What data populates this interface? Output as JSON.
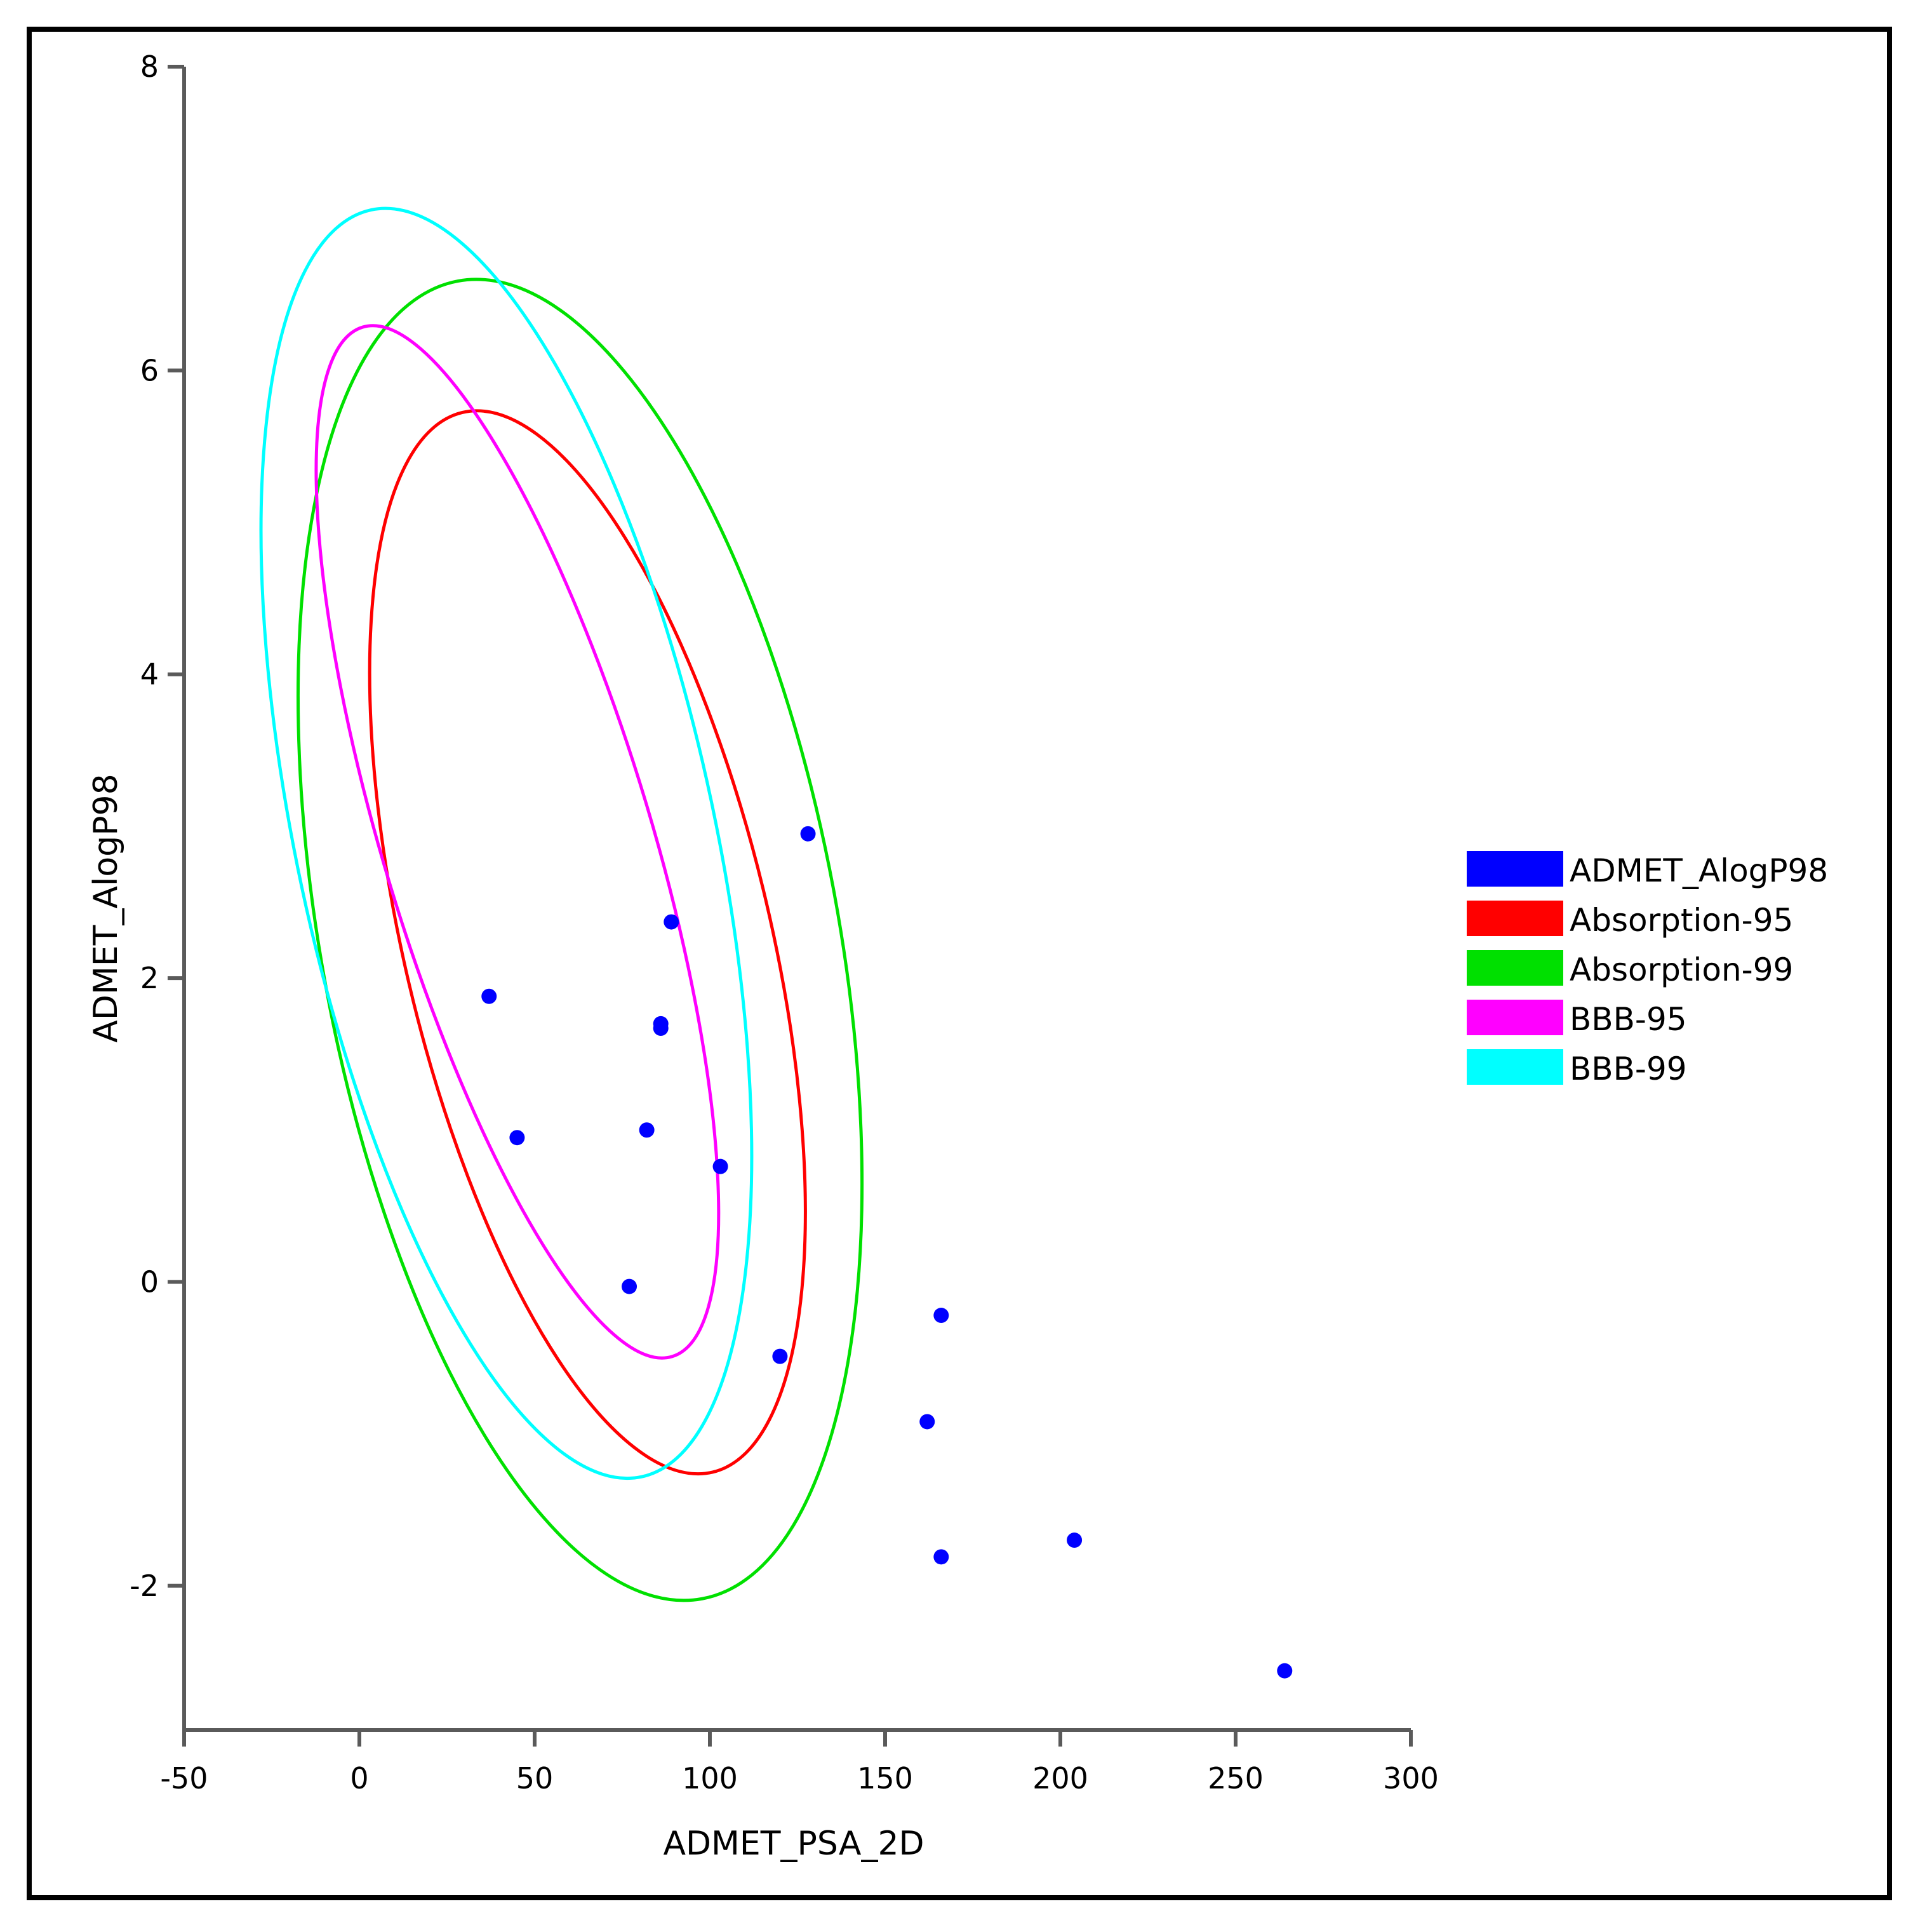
{
  "chart_data": {
    "type": "scatter",
    "xlabel": "ADMET_PSA_2D",
    "ylabel": "ADMET_AlogP98",
    "xlim": [
      -50,
      300
    ],
    "ylim": [
      -2.95,
      8
    ],
    "x_ticks": [
      -50,
      0,
      50,
      100,
      150,
      200,
      250,
      300
    ],
    "y_ticks": [
      -2,
      0,
      2,
      4,
      6,
      8
    ],
    "x_tick_labels": [
      "-50",
      "0",
      "50",
      "100",
      "150",
      "200",
      "250",
      "300"
    ],
    "y_tick_labels": [
      "-2",
      "0",
      "2",
      "4",
      "6",
      "8"
    ],
    "grid": false,
    "legend_position": "right",
    "points": {
      "name": "ADMET_AlogP98",
      "color": "#0000ff",
      "x": [
        128.0,
        89.0,
        37.0,
        86.0,
        86.0,
        45.0,
        82.0,
        103.0,
        77.0,
        120.0,
        166.0,
        162.0,
        166.0,
        204.0,
        264.0
      ],
      "y": [
        2.95,
        2.37,
        1.88,
        1.7,
        1.67,
        0.95,
        1.0,
        0.76,
        -0.03,
        -0.49,
        -0.22,
        -0.92,
        -1.81,
        -1.7,
        -2.56
      ]
    },
    "ellipses": [
      {
        "name": "Absorption-95",
        "color": "#ff0000",
        "x": [
          41.03,
          84.03,
          127.0,
          104.0,
          63.0,
          2.3,
          16.0
        ],
        "y": [
          5.88,
          -1.15,
          1.06,
          3.38,
          5.24,
          3.58,
          5.18
        ]
      },
      {
        "name": "Absorption-99",
        "color": "#00e000",
        "x": [
          37.14,
          92.82,
          145.0,
          133.0,
          95.0,
          3.0,
          -17.0
        ],
        "y": [
          6.73,
          -2.06,
          0.62,
          2.68,
          5.28,
          5.92,
          3.06
        ]
      },
      {
        "name": "BBB-95",
        "color": "#ff00ff",
        "x": [
          14.4,
          72.58,
          99.0,
          82.0,
          3.0,
          -12.0,
          44.0
        ],
        "y": [
          6.36,
          -0.4,
          1.42,
          3.08,
          5.92,
          4.64,
          0.67
        ]
      },
      {
        "name": "BBB-99",
        "color": "#00ffff",
        "x": [
          7.68,
          79.12,
          113.0,
          0.0,
          -27.0,
          66.0,
          27.0
        ],
        "y": [
          7.18,
          -1.2,
          0.74,
          6.98,
          5.22,
          5.52,
          -0.28
        ]
      }
    ],
    "legend": [
      {
        "label": "ADMET_AlogP98",
        "color": "#0000ff"
      },
      {
        "label": "Absorption-95",
        "color": "#ff0000"
      },
      {
        "label": "Absorption-99",
        "color": "#00e000"
      },
      {
        "label": "BBB-95",
        "color": "#ff00ff"
      },
      {
        "label": "BBB-99",
        "color": "#00ffff"
      }
    ]
  }
}
